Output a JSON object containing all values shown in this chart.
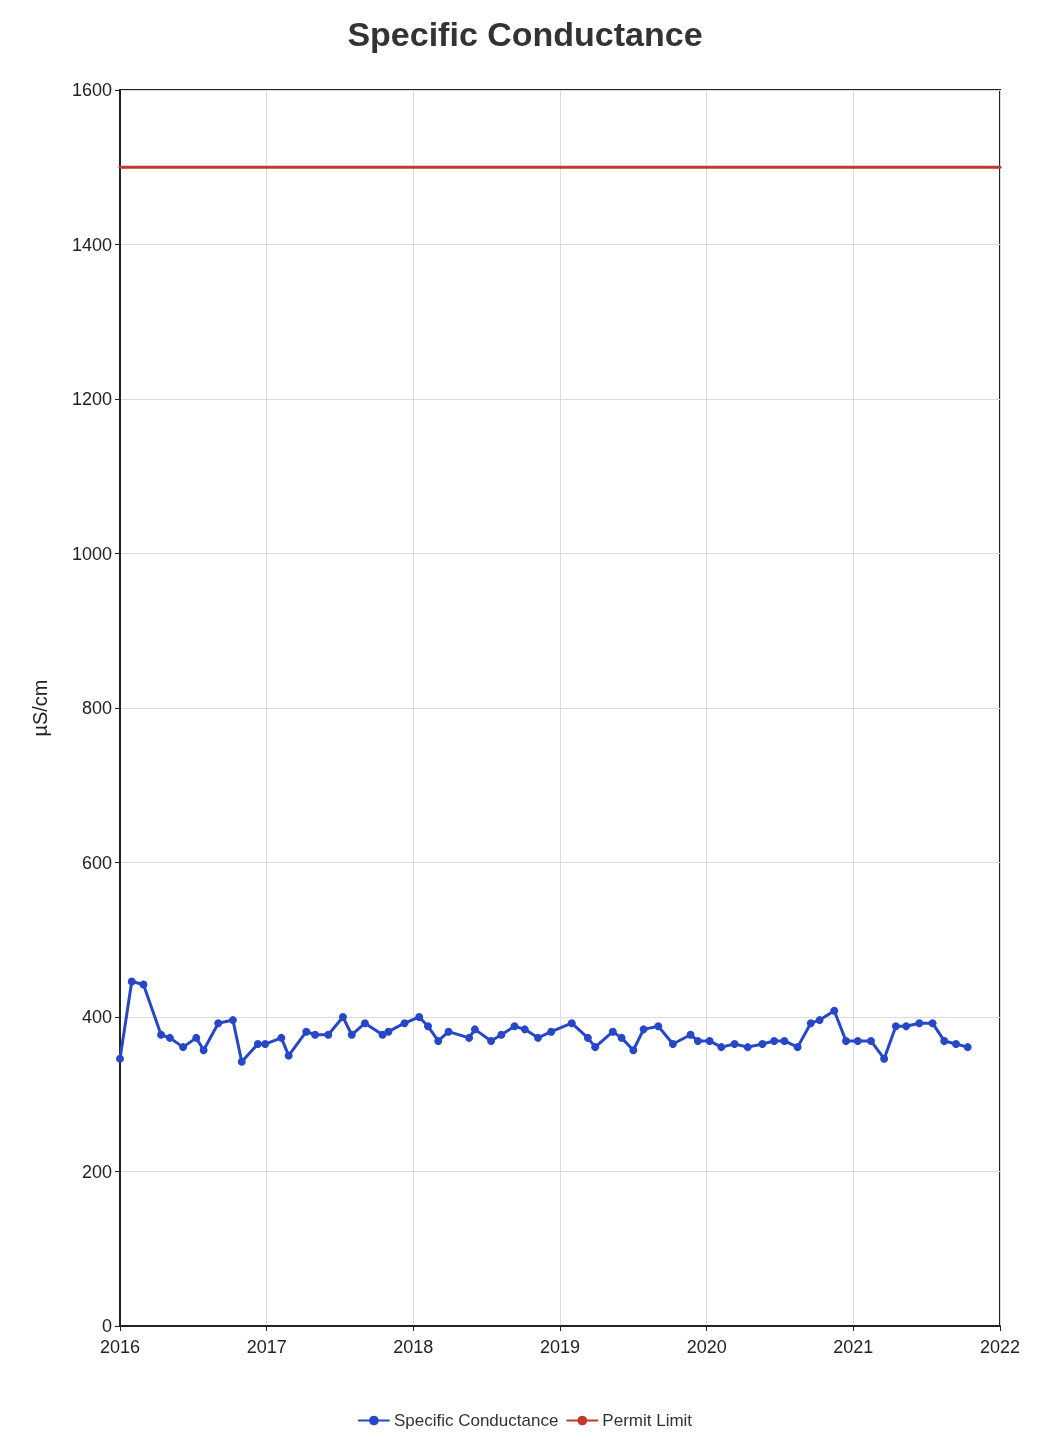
{
  "chart_data": {
    "type": "line",
    "title": "Specific Conductance",
    "ylabel": "µS/cm",
    "xlim": [
      2016,
      2022
    ],
    "xticks": [
      2016,
      2017,
      2018,
      2019,
      2020,
      2021,
      2022
    ],
    "ylim": [
      0,
      1600
    ],
    "yticks": [
      0,
      200,
      400,
      600,
      800,
      1000,
      1200,
      1400,
      1600
    ],
    "grid": true,
    "legend": "bottom",
    "series": [
      {
        "name": "Specific Conductance",
        "color": "#2747c9",
        "marker": "circle",
        "x": [
          2016.0,
          2016.08,
          2016.16,
          2016.28,
          2016.34,
          2016.43,
          2016.52,
          2016.57,
          2016.67,
          2016.77,
          2016.83,
          2016.94,
          2016.99,
          2017.1,
          2017.15,
          2017.27,
          2017.33,
          2017.42,
          2017.52,
          2017.58,
          2017.67,
          2017.79,
          2017.83,
          2017.94,
          2018.04,
          2018.1,
          2018.17,
          2018.24,
          2018.38,
          2018.42,
          2018.53,
          2018.6,
          2018.69,
          2018.76,
          2018.85,
          2018.94,
          2019.08,
          2019.19,
          2019.24,
          2019.36,
          2019.42,
          2019.5,
          2019.57,
          2019.67,
          2019.77,
          2019.89,
          2019.94,
          2020.02,
          2020.1,
          2020.19,
          2020.28,
          2020.38,
          2020.46,
          2020.53,
          2020.62,
          2020.71,
          2020.77,
          2020.87,
          2020.95,
          2021.03,
          2021.12,
          2021.21,
          2021.29,
          2021.36,
          2021.45,
          2021.54,
          2021.62,
          2021.7,
          2021.78
        ],
        "values": [
          346,
          446,
          442,
          377,
          373,
          361,
          373,
          357,
          392,
          396,
          342,
          365,
          365,
          373,
          350,
          381,
          377,
          377,
          400,
          377,
          392,
          377,
          381,
          392,
          400,
          388,
          369,
          381,
          373,
          384,
          369,
          377,
          388,
          384,
          373,
          381,
          392,
          373,
          361,
          381,
          373,
          357,
          384,
          388,
          365,
          377,
          369,
          369,
          361,
          365,
          361,
          365,
          369,
          369,
          361,
          392,
          396,
          408,
          369,
          369,
          369,
          346,
          388,
          388,
          392,
          392,
          369,
          365,
          361
        ]
      },
      {
        "name": "Permit Limit",
        "color": "#c0392b",
        "marker": "none",
        "x": [
          2016,
          2022
        ],
        "values": [
          1500,
          1500
        ]
      }
    ]
  }
}
